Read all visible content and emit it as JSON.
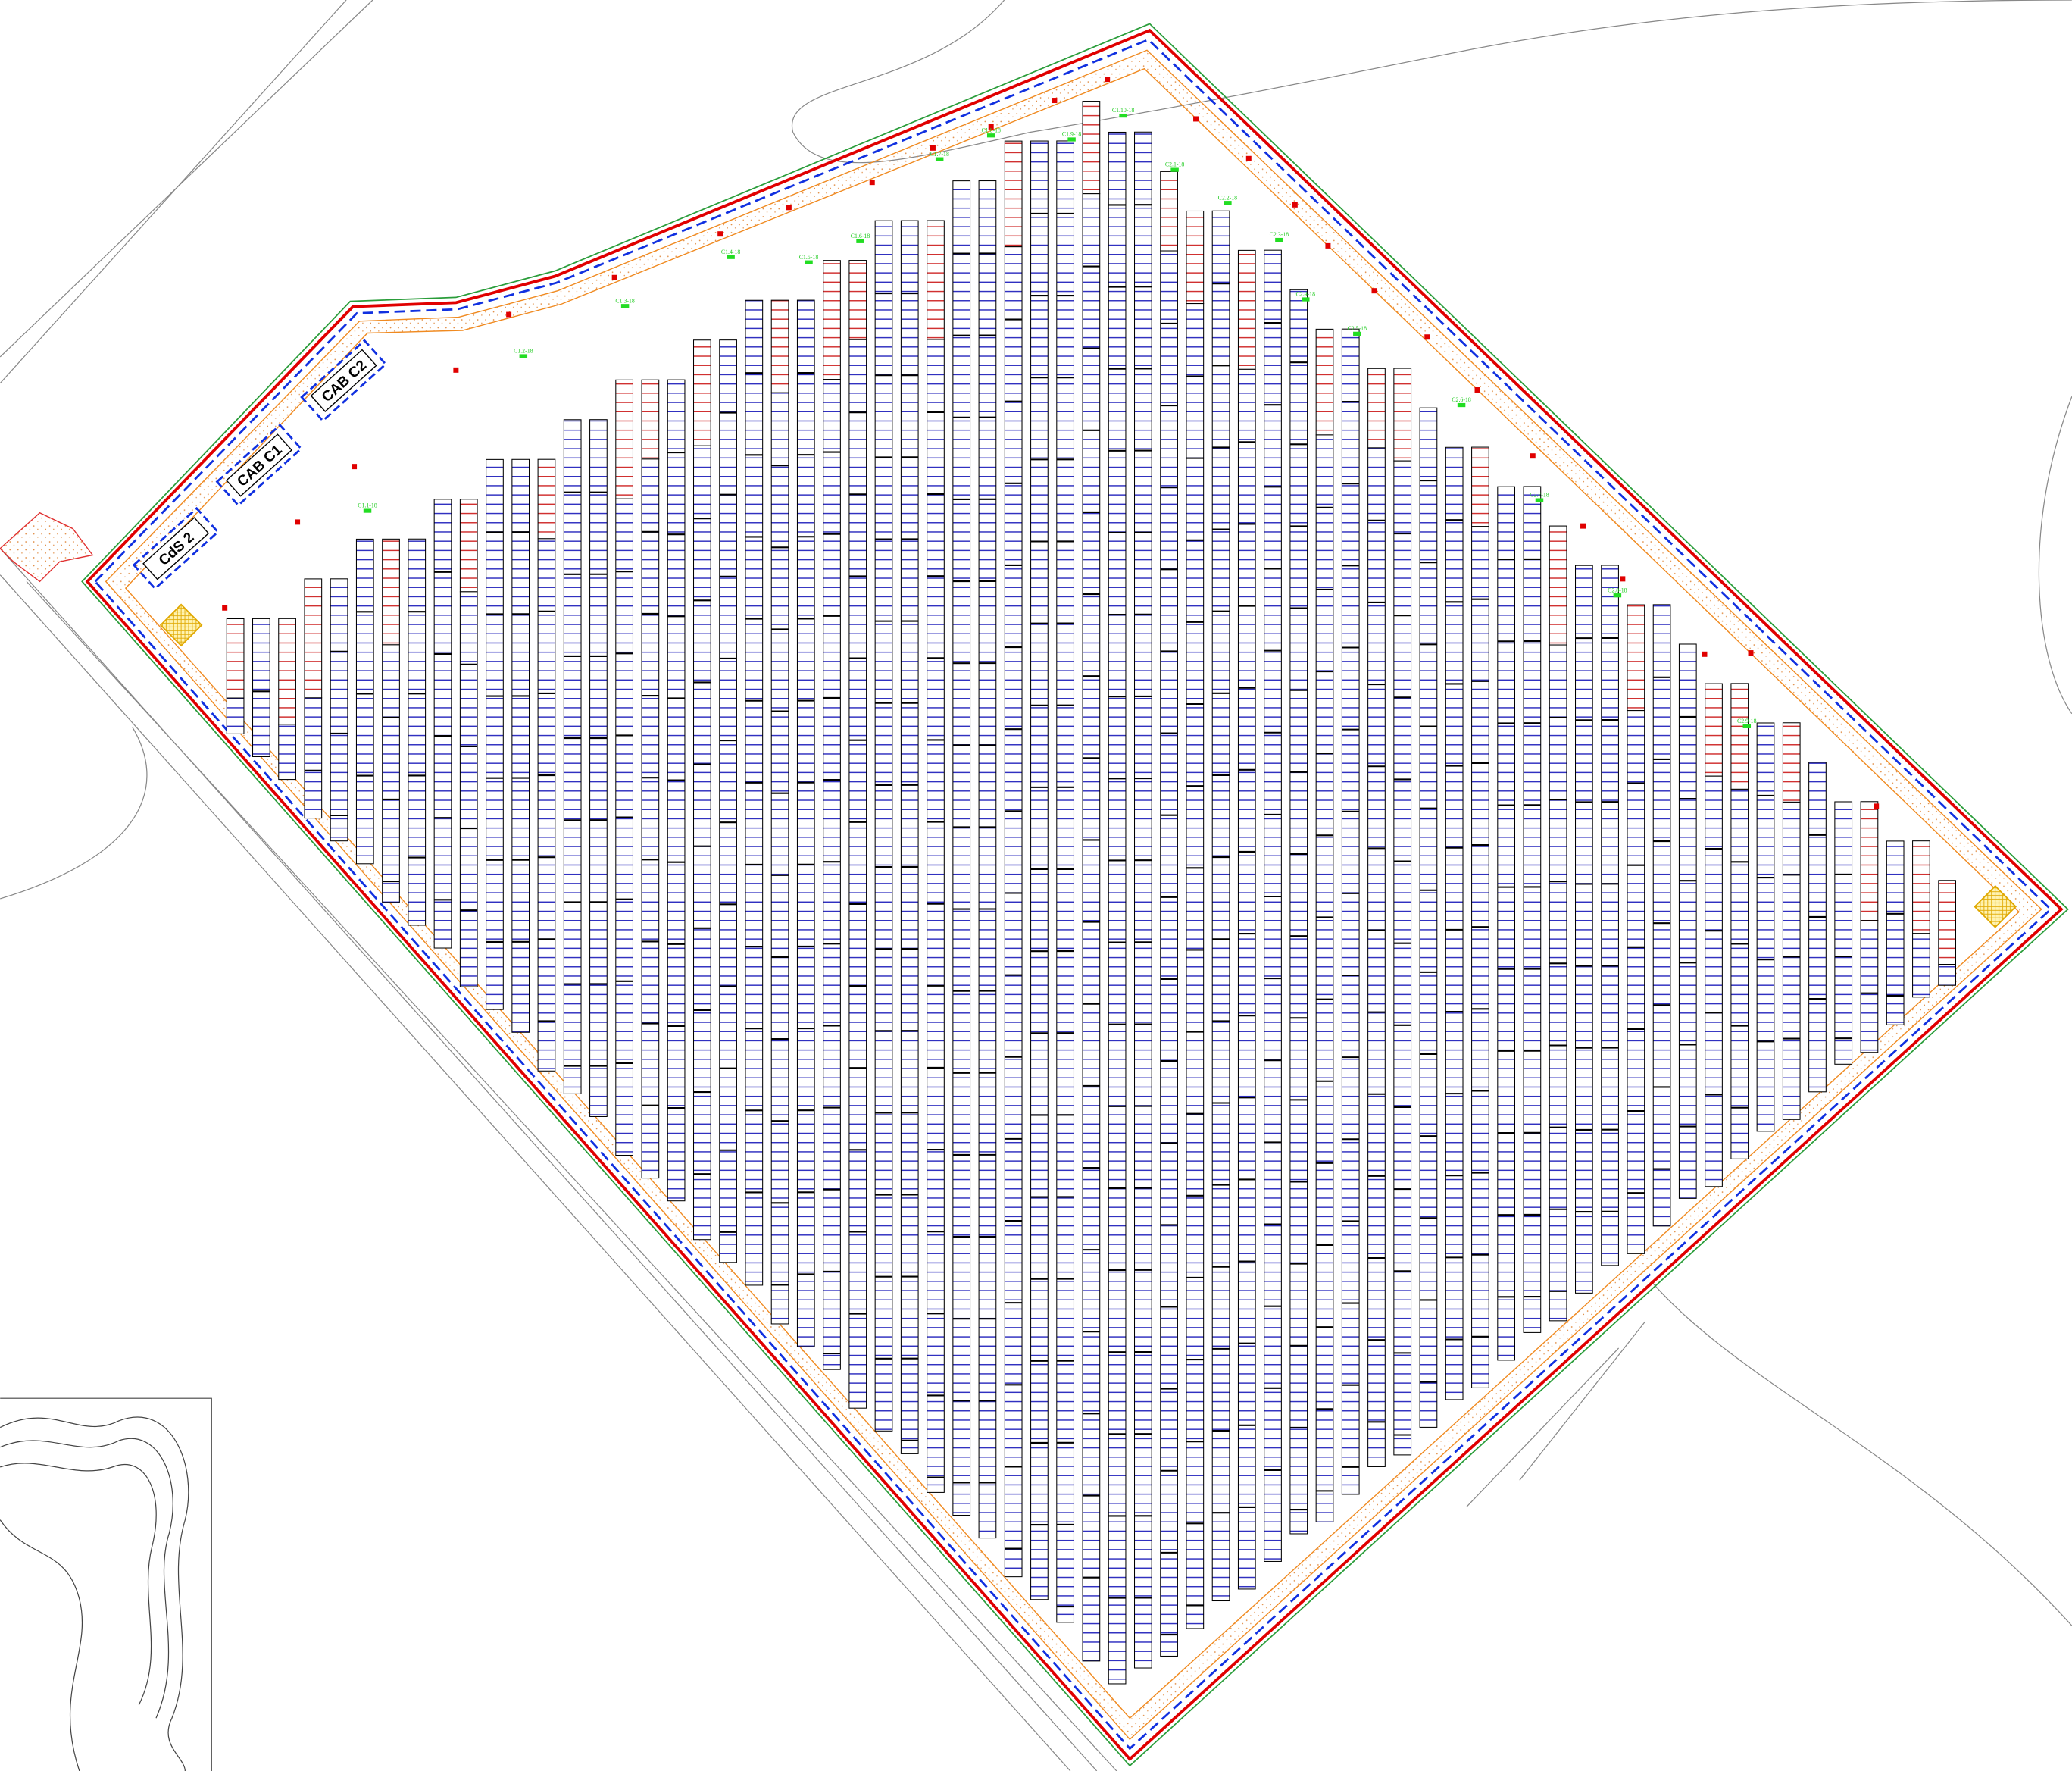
{
  "buildings": [
    {
      "label": "CdS 2"
    },
    {
      "label": "CAB C1"
    },
    {
      "label": "CAB C2"
    }
  ],
  "string_labels": [
    "C1.1-18",
    "C1.2-18",
    "C1.3-18",
    "C1.4-18",
    "C1.5-18",
    "C1.6-18",
    "C1.7-18",
    "C1.8-18",
    "C1.9-18",
    "C1.10-18",
    "C2.1-18",
    "C2.2-18",
    "C2.3-18",
    "C2.4-18",
    "C2.5-18",
    "C2.6-18",
    "C2.7-18",
    "C2.8-18",
    "C2.9-18"
  ]
}
